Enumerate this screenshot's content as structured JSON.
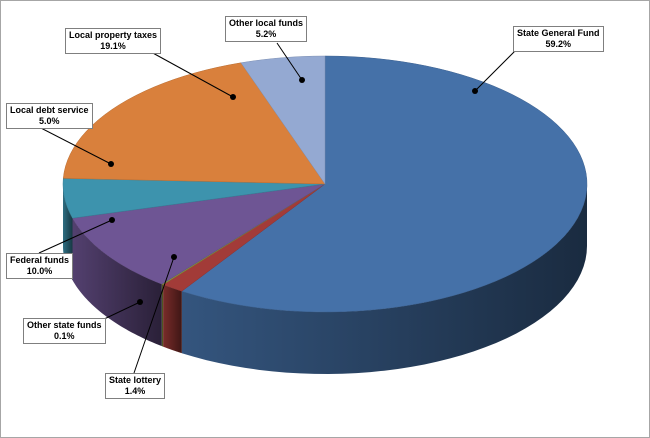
{
  "chart_data": {
    "type": "pie",
    "title": "",
    "style": "3d",
    "start_angle": "12 o'clock",
    "direction": "clockwise",
    "slices": [
      {
        "label": "State General Fund",
        "value": 59.2,
        "value_label": "59.2%",
        "color": "#4571a8"
      },
      {
        "label": "State lottery",
        "value": 1.4,
        "value_label": "1.4%",
        "color": "#a23b38"
      },
      {
        "label": "Other state funds",
        "value": 0.1,
        "value_label": "0.1%",
        "color": "#8a9a3a"
      },
      {
        "label": "Federal funds",
        "value": 10.0,
        "value_label": "10.0%",
        "color": "#6e5594"
      },
      {
        "label": "Local debt service",
        "value": 5.0,
        "value_label": "5.0%",
        "color": "#3d93ad"
      },
      {
        "label": "Local property taxes",
        "value": 19.1,
        "value_label": "19.1%",
        "color": "#d9803c"
      },
      {
        "label": "Other local funds",
        "value": 5.2,
        "value_label": "5.2%",
        "color": "#94a9d2"
      }
    ]
  }
}
